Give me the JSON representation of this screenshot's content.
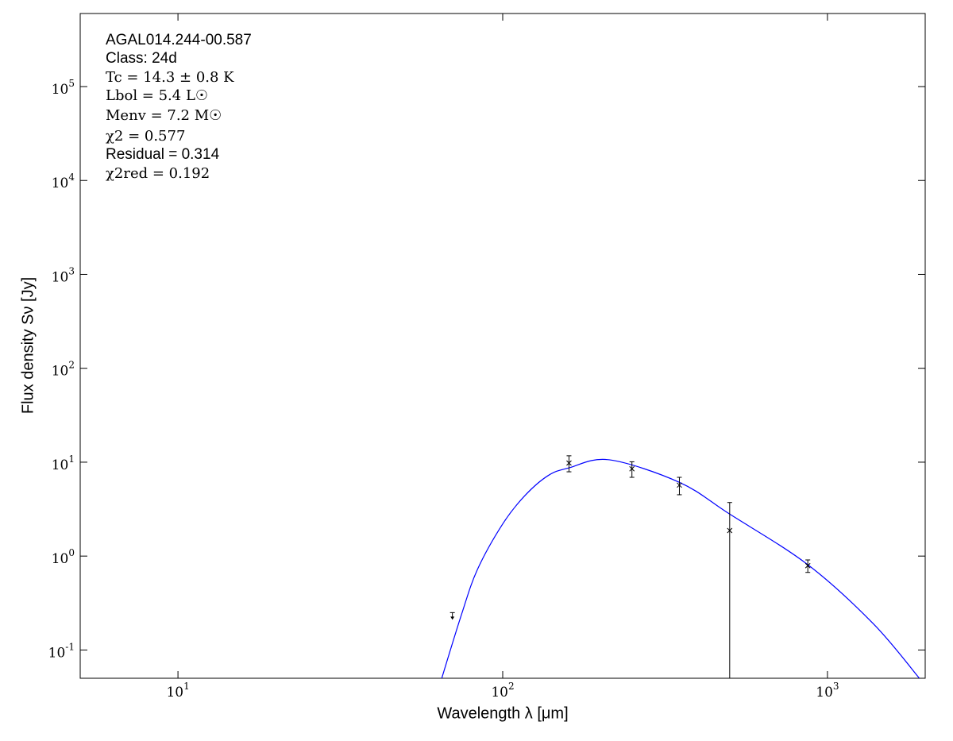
{
  "chart_data": {
    "type": "sed",
    "x_label": "Wavelength λ [μm]",
    "y_label": "Flux density Sν [Jy]",
    "annotations": [
      "AGAL014.244-00.587",
      "Class: 24d",
      "Tc = 14.3 ± 0.8 K",
      "Lbol = 5.4 L☉",
      "Menv = 7.2 M☉",
      "χ2 = 0.577",
      "Residual = 0.314",
      "χ2red = 0.192"
    ],
    "xlim": [
      5,
      2000
    ],
    "ylim": [
      0.05,
      600000
    ],
    "log_x": true,
    "log_y": true,
    "xticks": [
      {
        "value": 10,
        "label": "10^1"
      },
      {
        "value": 100,
        "label": "10^2"
      },
      {
        "value": 1000,
        "label": "10^3"
      }
    ],
    "yticks": [
      {
        "value": 0.1,
        "label": "10^-1"
      },
      {
        "value": 1,
        "label": "10^0"
      },
      {
        "value": 10,
        "label": "10^1"
      },
      {
        "value": 100,
        "label": "10^2"
      },
      {
        "value": 1000,
        "label": "10^3"
      },
      {
        "value": 10000,
        "label": "10^4"
      },
      {
        "value": 100000,
        "label": "10^5"
      }
    ],
    "series": [
      {
        "type": "line",
        "color": "#0000ff",
        "x": [
          64.9,
          74.7,
          83.6,
          100,
          117,
          138,
          160,
          213,
          350,
          500,
          870,
          1385,
          1919
        ],
        "values": [
          0.05,
          0.24,
          0.72,
          2.2,
          4.4,
          7.2,
          8.7,
          10.6,
          6.1,
          2.8,
          0.81,
          0.19,
          0.05
        ]
      },
      {
        "type": "errorbar",
        "color": "#000000",
        "x": [
          160,
          250,
          350,
          500,
          870
        ],
        "values": [
          9.8,
          8.5,
          5.7,
          1.87,
          0.79
        ],
        "errors": [
          1.9,
          1.6,
          1.2,
          1.85,
          0.12
        ]
      },
      {
        "type": "upper_limit",
        "color": "#000000",
        "x": [
          70
        ],
        "values": [
          0.25
        ]
      }
    ]
  }
}
